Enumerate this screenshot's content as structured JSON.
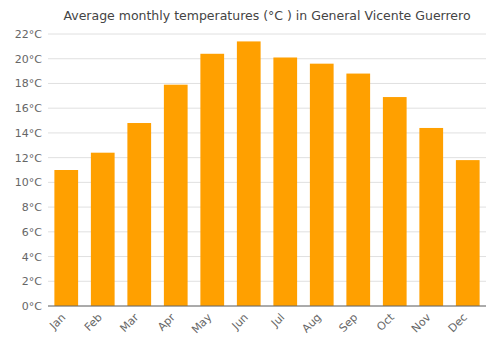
{
  "chart_data": {
    "type": "bar",
    "title": "Average monthly temperatures (°C ) in General Vicente Guerrero",
    "categories": [
      "Jan",
      "Feb",
      "Mar",
      "Apr",
      "May",
      "Jun",
      "Jul",
      "Aug",
      "Sep",
      "Oct",
      "Nov",
      "Dec"
    ],
    "values": [
      11.0,
      12.4,
      14.8,
      17.9,
      20.4,
      21.4,
      20.1,
      19.6,
      18.8,
      16.9,
      14.4,
      11.8
    ],
    "color": "#FFA000",
    "ylim": [
      0,
      22
    ],
    "yticks": [
      {
        "value": 0,
        "label": "0°C"
      },
      {
        "value": 2,
        "label": "2°C"
      },
      {
        "value": 4,
        "label": "4°C"
      },
      {
        "value": 6,
        "label": "6°C"
      },
      {
        "value": 8,
        "label": "8°C"
      },
      {
        "value": 10,
        "label": "10°C"
      },
      {
        "value": 12,
        "label": "12°C"
      },
      {
        "value": 14,
        "label": "14°C"
      },
      {
        "value": 16,
        "label": "16°C"
      },
      {
        "value": 18,
        "label": "18°C"
      },
      {
        "value": 20,
        "label": "20°C"
      },
      {
        "value": 22,
        "label": "22°C"
      }
    ],
    "grid": true
  }
}
